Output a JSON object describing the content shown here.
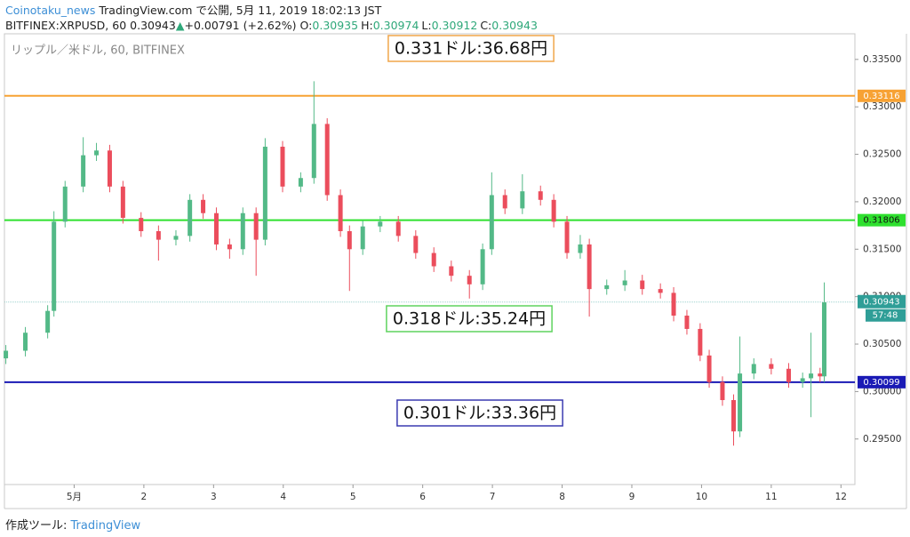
{
  "header": {
    "author": "Coinotaku_news",
    "published": "TradingView.com で公開, 5月 11, 2019 18:02:13 JST",
    "symbol": "BITFINEX:XRPUSD, 60",
    "last": "0.30943",
    "arrow": "▲",
    "change": "+0.00791 (+2.62%)",
    "ohlc": [
      {
        "label": "O:",
        "value": "0.30935"
      },
      {
        "label": "H:",
        "value": "0.30974"
      },
      {
        "label": "L:",
        "value": "0.30912"
      },
      {
        "label": "C:",
        "value": "0.30943"
      }
    ]
  },
  "chart_data": {
    "type": "candlestick",
    "watermark": "リップル／米ドル, 60, BITFINEX",
    "up_color": "#53b987",
    "down_color": "#eb4d5c",
    "x": [
      0.02,
      0.3,
      0.62,
      0.71,
      0.87,
      1.13,
      1.32,
      1.51,
      1.7,
      1.96,
      2.21,
      2.46,
      2.66,
      2.85,
      3.04,
      3.23,
      3.42,
      3.61,
      3.74,
      3.99,
      4.25,
      4.44,
      4.63,
      4.82,
      4.95,
      5.14,
      5.39,
      5.65,
      5.9,
      6.16,
      6.41,
      6.67,
      6.86,
      6.99,
      7.18,
      7.43,
      7.69,
      7.88,
      8.07,
      8.26,
      8.39,
      8.64,
      8.9,
      9.15,
      9.41,
      9.6,
      9.79,
      9.98,
      10.11,
      10.3,
      10.46,
      10.55,
      10.75,
      11.0,
      11.25,
      11.45,
      11.57,
      11.7,
      11.76
    ],
    "open": [
      0.3035,
      0.3043,
      0.3062,
      0.3085,
      0.3179,
      0.3216,
      0.3249,
      0.3254,
      0.3216,
      0.3183,
      0.3169,
      0.316,
      0.3164,
      0.3202,
      0.3188,
      0.3155,
      0.315,
      0.3188,
      0.316,
      0.3258,
      0.3216,
      0.3225,
      0.3282,
      0.3207,
      0.3169,
      0.315,
      0.3174,
      0.3179,
      0.3164,
      0.3146,
      0.3132,
      0.3122,
      0.3113,
      0.315,
      0.3207,
      0.3193,
      0.3211,
      0.3202,
      0.3179,
      0.3146,
      0.3155,
      0.3108,
      0.3112,
      0.3117,
      0.3108,
      0.3104,
      0.308,
      0.3066,
      0.3038,
      0.301,
      0.2991,
      0.2958,
      0.3019,
      0.3029,
      0.3024,
      0.301,
      0.3014,
      0.3019,
      0.3016
    ],
    "high": [
      0.3049,
      0.3068,
      0.3091,
      0.319,
      0.3222,
      0.3268,
      0.3262,
      0.326,
      0.3222,
      0.3189,
      0.3175,
      0.317,
      0.3208,
      0.3208,
      0.3194,
      0.3161,
      0.3194,
      0.3194,
      0.3267,
      0.3264,
      0.3231,
      0.3327,
      0.3288,
      0.3213,
      0.3175,
      0.318,
      0.3185,
      0.3185,
      0.317,
      0.3152,
      0.3138,
      0.3128,
      0.3156,
      0.3231,
      0.3213,
      0.3229,
      0.3217,
      0.3208,
      0.3185,
      0.3165,
      0.3161,
      0.3118,
      0.3128,
      0.3123,
      0.3114,
      0.311,
      0.3086,
      0.3072,
      0.3044,
      0.3016,
      0.2997,
      0.3058,
      0.3035,
      0.3035,
      0.303,
      0.302,
      0.3062,
      0.3025,
      0.3115
    ],
    "low": [
      0.3029,
      0.3037,
      0.3056,
      0.3079,
      0.3173,
      0.321,
      0.3243,
      0.321,
      0.3177,
      0.3163,
      0.3138,
      0.3154,
      0.3158,
      0.3182,
      0.3149,
      0.314,
      0.3144,
      0.3122,
      0.3154,
      0.321,
      0.321,
      0.3219,
      0.3201,
      0.3163,
      0.3106,
      0.3144,
      0.3168,
      0.3158,
      0.314,
      0.3126,
      0.3116,
      0.3098,
      0.3107,
      0.3144,
      0.3187,
      0.3187,
      0.3196,
      0.3173,
      0.314,
      0.314,
      0.3079,
      0.3102,
      0.3106,
      0.3102,
      0.3098,
      0.3074,
      0.306,
      0.3032,
      0.3004,
      0.2985,
      0.2943,
      0.2952,
      0.3013,
      0.3018,
      0.3004,
      0.3004,
      0.2973,
      0.301,
      0.301
    ],
    "close": [
      0.3043,
      0.3062,
      0.3085,
      0.3179,
      0.3216,
      0.3249,
      0.3254,
      0.3216,
      0.3183,
      0.3169,
      0.316,
      0.3164,
      0.3202,
      0.3188,
      0.3155,
      0.315,
      0.3188,
      0.316,
      0.3258,
      0.3216,
      0.3225,
      0.3282,
      0.3207,
      0.3169,
      0.315,
      0.3174,
      0.3179,
      0.3164,
      0.3146,
      0.3132,
      0.3122,
      0.3113,
      0.315,
      0.3207,
      0.3193,
      0.3211,
      0.3202,
      0.3179,
      0.3146,
      0.3155,
      0.3108,
      0.3112,
      0.3117,
      0.3108,
      0.3104,
      0.308,
      0.3066,
      0.3038,
      0.301,
      0.2991,
      0.2958,
      0.3019,
      0.3029,
      0.3024,
      0.301,
      0.3014,
      0.3019,
      0.3016,
      0.3094
    ],
    "xlim": [
      0,
      12.2
    ],
    "xticks": [
      {
        "value": 1,
        "label": "5月"
      },
      2,
      3,
      4,
      5,
      6,
      7,
      8,
      9,
      10,
      11,
      12
    ],
    "ylim": [
      0.2902,
      0.3377
    ],
    "yticks": [
      {
        "value": 0.295,
        "label": "0.29500"
      },
      {
        "value": 0.3,
        "label": "0.30000"
      },
      {
        "value": 0.305,
        "label": "0.30500"
      },
      {
        "value": 0.31,
        "label": "0.31000"
      },
      {
        "value": 0.315,
        "label": "0.31500"
      },
      {
        "value": 0.32,
        "label": "0.32000"
      },
      {
        "value": 0.325,
        "label": "0.32500"
      },
      {
        "value": 0.33,
        "label": "0.33000"
      },
      {
        "value": 0.335,
        "label": "0.33500"
      }
    ],
    "hlines": [
      {
        "value": 0.33116,
        "color": "#f7a234"
      },
      {
        "value": 0.31806,
        "color": "#2ee02e"
      },
      {
        "value": 0.30099,
        "color": "#1a1ab5"
      }
    ],
    "last_price": {
      "value": 0.30943,
      "color": "#2f9e97",
      "countdown": "57:48"
    },
    "annotations": [
      {
        "text": "0.331ドル:36.68円",
        "color": "#f0a64a"
      },
      {
        "text": "0.318ドル:35.24円",
        "color": "#5fd35f"
      },
      {
        "text": "0.301ドル:33.36円",
        "color": "#3a3ab0"
      }
    ]
  },
  "footer": {
    "made_with": "作成ツール:",
    "brand": "TradingView"
  }
}
